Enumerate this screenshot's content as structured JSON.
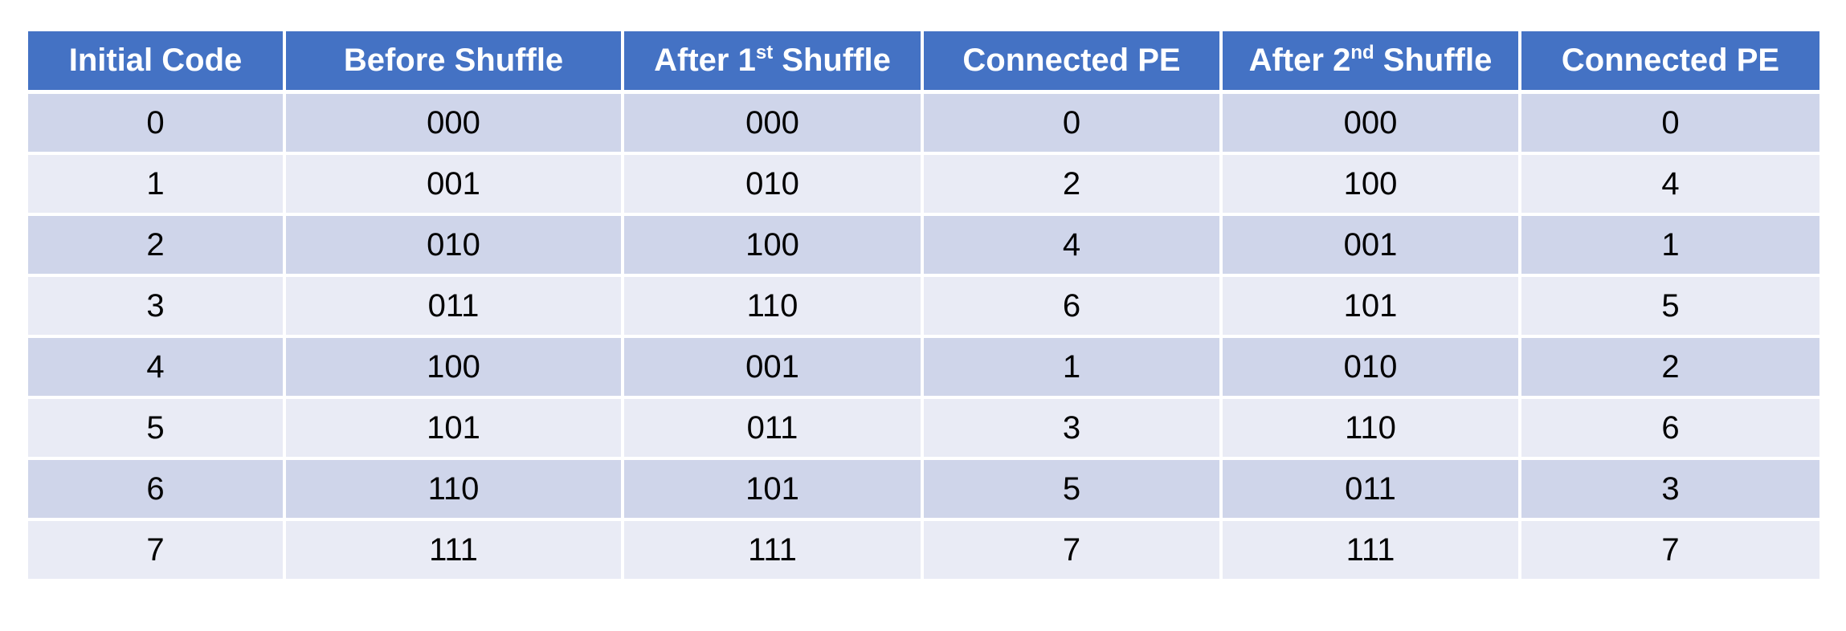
{
  "table": {
    "headers": [
      {
        "text": "Initial Code",
        "sup": "",
        "suffix": ""
      },
      {
        "text": "Before Shuffle",
        "sup": "",
        "suffix": ""
      },
      {
        "text": "After 1",
        "sup": "st",
        "suffix": " Shuffle"
      },
      {
        "text": "Connected PE",
        "sup": "",
        "suffix": ""
      },
      {
        "text": "After 2",
        "sup": "nd",
        "suffix": " Shuffle"
      },
      {
        "text": "Connected PE",
        "sup": "",
        "suffix": ""
      }
    ],
    "rows": [
      [
        "0",
        "000",
        "000",
        "0",
        "000",
        "0"
      ],
      [
        "1",
        "001",
        "010",
        "2",
        "100",
        "4"
      ],
      [
        "2",
        "010",
        "100",
        "4",
        "001",
        "1"
      ],
      [
        "3",
        "011",
        "110",
        "6",
        "101",
        "5"
      ],
      [
        "4",
        "100",
        "001",
        "1",
        "010",
        "2"
      ],
      [
        "5",
        "101",
        "011",
        "3",
        "110",
        "6"
      ],
      [
        "6",
        "110",
        "101",
        "5",
        "011",
        "3"
      ],
      [
        "7",
        "111",
        "111",
        "7",
        "111",
        "7"
      ]
    ]
  },
  "colors": {
    "header_bg": "#4472c4",
    "header_text": "#ffffff",
    "row_odd_bg": "#cfd5ea",
    "row_even_bg": "#e9ebf5",
    "cell_text": "#000000"
  }
}
